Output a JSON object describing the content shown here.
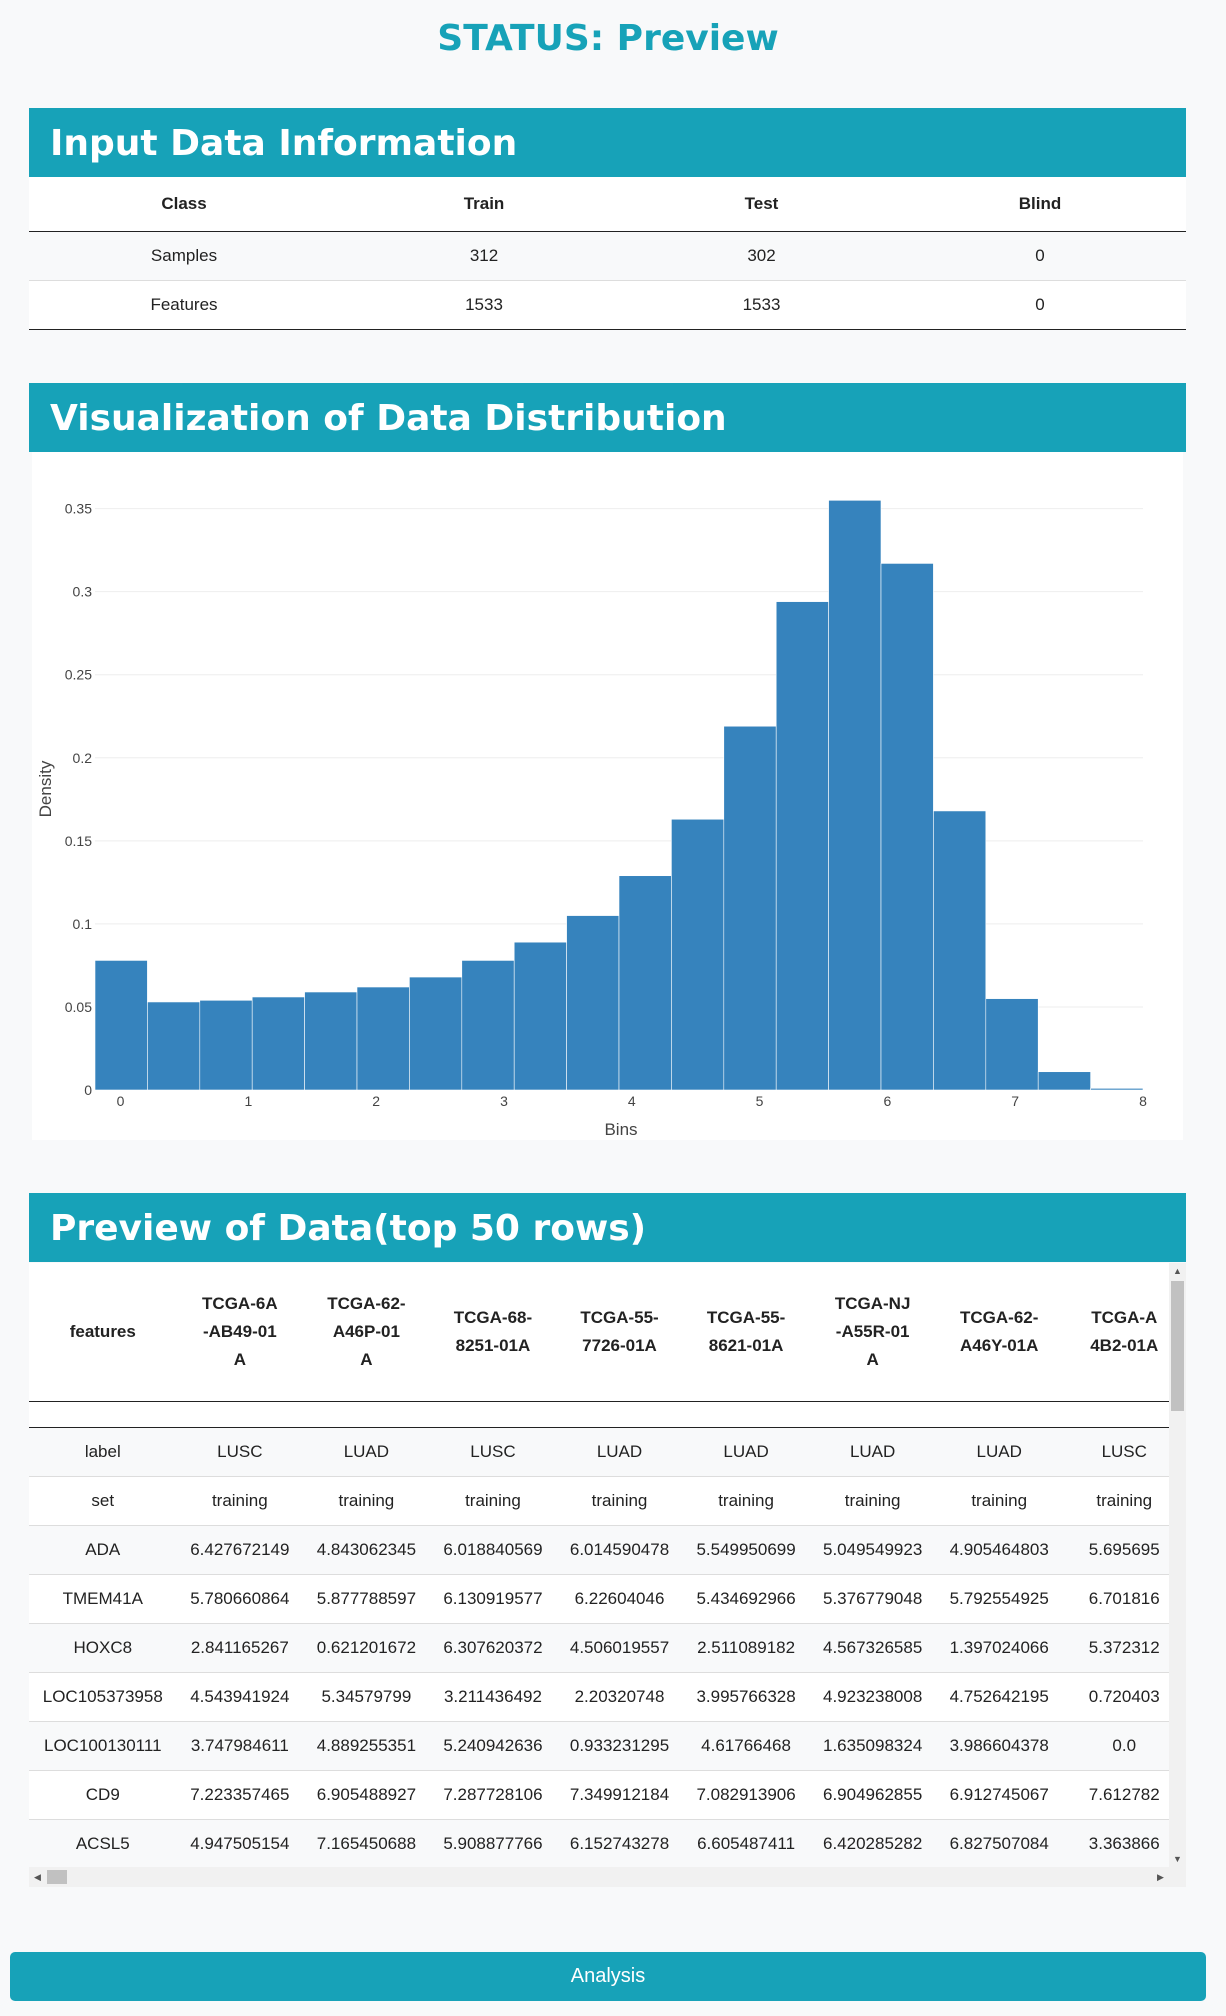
{
  "status": {
    "title": "STATUS: Preview"
  },
  "input_info": {
    "header": "Input Data Information",
    "columns": [
      "Class",
      "Train",
      "Test",
      "Blind"
    ],
    "rows": [
      [
        "Samples",
        "312",
        "302",
        "0"
      ],
      [
        "Features",
        "1533",
        "1533",
        "0"
      ]
    ]
  },
  "visualization": {
    "header": "Visualization of Data Distribution"
  },
  "chart_data": {
    "type": "bar",
    "xlabel": "Bins",
    "ylabel": "Density",
    "xlim": [
      -0.2,
      8
    ],
    "ylim": [
      0,
      0.36
    ],
    "x_ticks": [
      0,
      1,
      2,
      3,
      4,
      5,
      6,
      7,
      8
    ],
    "y_ticks": [
      0,
      0.05,
      0.1,
      0.15,
      0.2,
      0.25,
      0.3,
      0.35
    ],
    "y_tick_labels": [
      "0",
      "0.05",
      "0.1",
      "0.15",
      "0.2",
      "0.25",
      "0.3",
      "0.35"
    ],
    "bin_edges": [
      -0.2,
      0.21,
      0.62,
      1.03,
      1.44,
      1.85,
      2.26,
      2.67,
      3.08,
      3.49,
      3.9,
      4.31,
      4.72,
      5.13,
      5.54,
      5.95,
      6.36,
      6.77,
      7.18,
      7.59,
      8.0
    ],
    "values": [
      0.078,
      0.053,
      0.054,
      0.056,
      0.059,
      0.062,
      0.068,
      0.078,
      0.089,
      0.105,
      0.129,
      0.163,
      0.219,
      0.294,
      0.355,
      0.317,
      0.168,
      0.055,
      0.011,
      0.001
    ],
    "bar_color": "#3683bd",
    "grid": true
  },
  "preview": {
    "header": "Preview of Data(top 50 rows)",
    "columns": [
      "features",
      "TCGA-6A-AB49-01A",
      "TCGA-62-A46P-01A",
      "TCGA-68-8251-01A",
      "TCGA-55-7726-01A",
      "TCGA-55-8621-01A",
      "TCGA-NJ-A55R-01A",
      "TCGA-62-A46Y-01A",
      "TCGA-A4B2-01A"
    ],
    "rows": [
      [
        "label",
        "LUSC",
        "LUAD",
        "LUSC",
        "LUAD",
        "LUAD",
        "LUAD",
        "LUAD",
        "LUSC"
      ],
      [
        "set",
        "training",
        "training",
        "training",
        "training",
        "training",
        "training",
        "training",
        "training"
      ],
      [
        "ADA",
        "6.427672149",
        "4.843062345",
        "6.018840569",
        "6.014590478",
        "5.549950699",
        "5.049549923",
        "4.905464803",
        "5.695695"
      ],
      [
        "TMEM41A",
        "5.780660864",
        "5.877788597",
        "6.130919577",
        "6.22604046",
        "5.434692966",
        "5.376779048",
        "5.792554925",
        "6.701816"
      ],
      [
        "HOXC8",
        "2.841165267",
        "0.621201672",
        "6.307620372",
        "4.506019557",
        "2.511089182",
        "4.567326585",
        "1.397024066",
        "5.372312"
      ],
      [
        "LOC105373958",
        "4.543941924",
        "5.34579799",
        "3.211436492",
        "2.20320748",
        "3.995766328",
        "4.923238008",
        "4.752642195",
        "0.720403"
      ],
      [
        "LOC100130111",
        "3.747984611",
        "4.889255351",
        "5.240942636",
        "0.933231295",
        "4.61766468",
        "1.635098324",
        "3.986604378",
        "0.0"
      ],
      [
        "CD9",
        "7.223357465",
        "6.905488927",
        "7.287728106",
        "7.349912184",
        "7.082913906",
        "6.904962855",
        "6.912745067",
        "7.612782"
      ],
      [
        "ACSL5",
        "4.947505154",
        "7.165450688",
        "5.908877766",
        "6.152743278",
        "6.605487411",
        "6.420285282",
        "6.827507084",
        "3.363866"
      ]
    ]
  },
  "actions": {
    "analysis_label": "Analysis"
  }
}
